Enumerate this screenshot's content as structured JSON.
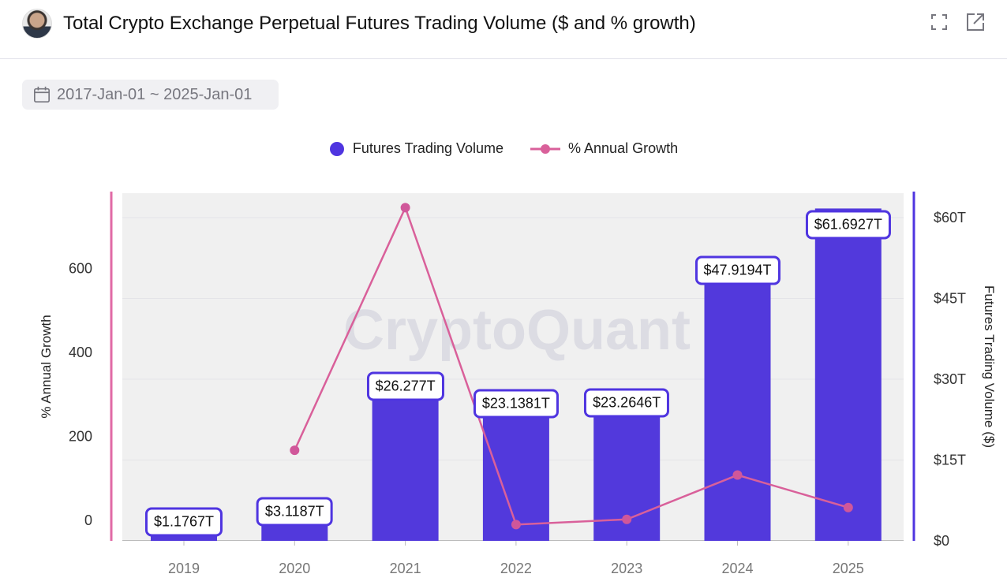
{
  "header": {
    "title": "Total Crypto Exchange Perpetual Futures Trading Volume ($ and % growth)",
    "icons": [
      "fullscreen-icon",
      "external-link-icon"
    ]
  },
  "date_range": {
    "label": "2017-Jan-01 ~ 2025-Jan-01",
    "icon": "calendar-icon"
  },
  "colors": {
    "bar": "#5239dc",
    "line": "#d9609a",
    "axis_left": "#e06aa6",
    "axis_right": "#4f35e0",
    "plot_bg": "#f0f0f0"
  },
  "watermark": "CryptoQuant",
  "chart_data": {
    "type": "bar+line",
    "title": "Total Crypto Exchange Perpetual Futures Trading Volume ($ and % growth)",
    "categories": [
      "2019",
      "2020",
      "2021",
      "2022",
      "2023",
      "2024",
      "2025"
    ],
    "series": [
      {
        "name": "Futures Trading Volume",
        "type": "bar",
        "axis": "right",
        "values": [
          1.1767,
          3.1187,
          26.277,
          23.1381,
          23.2646,
          47.9194,
          61.6927
        ],
        "labels": [
          "$1.1767T",
          "$3.1187T",
          "$26.277T",
          "$23.1381T",
          "$23.2646T",
          "$47.9194T",
          "$61.6927T"
        ]
      },
      {
        "name": "% Annual Growth",
        "type": "line",
        "axis": "left",
        "values": [
          null,
          165,
          743,
          -12,
          0.5,
          106,
          28.7
        ]
      }
    ],
    "left_axis": {
      "label": "% Annual Growth",
      "ticks": [
        "0",
        "200",
        "400",
        "600"
      ],
      "tick_values": [
        0,
        200,
        400,
        600
      ],
      "range": [
        -49,
        777
      ]
    },
    "right_axis": {
      "label": "Futures Trading Volume ($)",
      "ticks": [
        "$0",
        "$15T",
        "$30T",
        "$45T",
        "$60T"
      ],
      "tick_values": [
        0,
        15,
        30,
        45,
        60
      ],
      "range": [
        0,
        64.4
      ]
    },
    "legend_placement": "top-center",
    "grid": true
  }
}
